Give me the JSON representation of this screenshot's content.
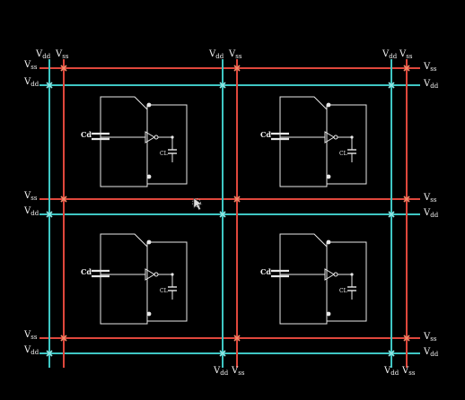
{
  "labels": {
    "vdd": "V",
    "vdd_sub": "dd",
    "vss": "V",
    "vss_sub": "ss",
    "cd": "Cd",
    "cl": "CL"
  },
  "colors": {
    "background": "#000000",
    "vss_rail": "#e0473c",
    "vdd_rail": "#3fc7c4",
    "cell_wire": "#e8e8e8",
    "text": "#f2f2f2"
  },
  "icons": {
    "cursor": "mouse-pointer-icon"
  },
  "cells": [
    {
      "id": "top-left"
    },
    {
      "id": "top-right"
    },
    {
      "id": "bottom-left"
    },
    {
      "id": "bottom-right"
    }
  ]
}
